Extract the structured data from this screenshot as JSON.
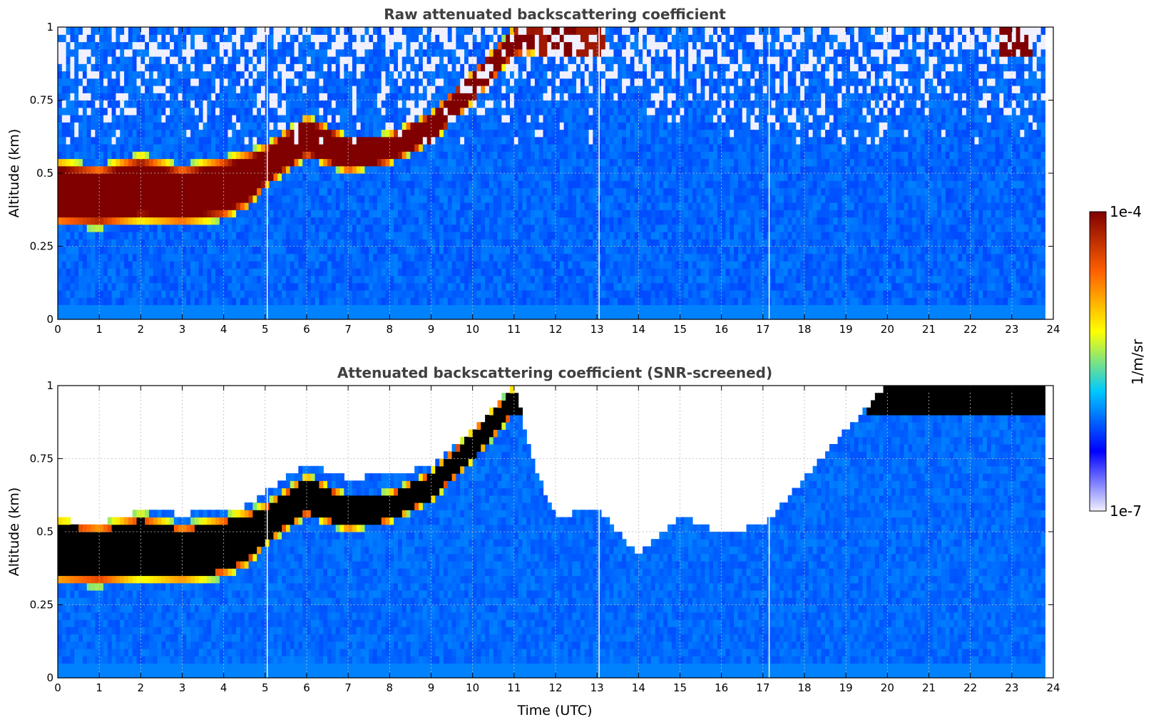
{
  "figure": {
    "colorbar": {
      "label": "1/m/sr",
      "max_label": "1e-4",
      "min_label": "1e-7",
      "scale": "log",
      "colormap": [
        "#f0f0ff",
        "#0000ff",
        "#00c8ff",
        "#ffff00",
        "#ff6000",
        "#800000"
      ]
    },
    "xlabel": "Time (UTC)"
  },
  "chart_data": [
    {
      "type": "heatmap",
      "title": "Raw attenuated backscattering coefficient",
      "xlabel": "",
      "ylabel": "Altitude (km)",
      "xlim": [
        0,
        24
      ],
      "ylim": [
        0,
        1
      ],
      "x_ticks": [
        "0",
        "1",
        "2",
        "3",
        "4",
        "5",
        "6",
        "7",
        "8",
        "9",
        "10",
        "11",
        "12",
        "13",
        "14",
        "15",
        "16",
        "17",
        "18",
        "19",
        "20",
        "21",
        "22",
        "23",
        "24"
      ],
      "y_ticks": [
        "0",
        "0.25",
        "0.5",
        "0.75",
        "1"
      ],
      "data_end_time": 23.8,
      "data_gaps_time": [
        5.05,
        13.05,
        17.15
      ],
      "layer_top_km": [
        [
          0,
          0.55
        ],
        [
          1,
          0.53
        ],
        [
          2,
          0.57
        ],
        [
          3,
          0.53
        ],
        [
          4,
          0.56
        ],
        [
          4.6,
          0.58
        ],
        [
          5,
          0.6
        ],
        [
          6,
          0.7
        ],
        [
          7,
          0.63
        ],
        [
          8,
          0.64
        ],
        [
          9,
          0.71
        ],
        [
          10,
          0.85
        ],
        [
          11,
          1.0
        ],
        [
          12,
          1.0
        ],
        [
          13,
          1.0
        ]
      ],
      "layer_bottom_km": [
        [
          0,
          0.32
        ],
        [
          1,
          0.31
        ],
        [
          2,
          0.33
        ],
        [
          3,
          0.32
        ],
        [
          4,
          0.34
        ],
        [
          4.6,
          0.38
        ],
        [
          5,
          0.45
        ],
        [
          6,
          0.55
        ],
        [
          7,
          0.5
        ],
        [
          8,
          0.53
        ],
        [
          9,
          0.6
        ],
        [
          10,
          0.74
        ],
        [
          11,
          0.9
        ],
        [
          12,
          0.92
        ],
        [
          13,
          0.95
        ]
      ],
      "upper_cloud_intervals": [
        [
          11.8,
          12.5
        ],
        [
          22.7,
          23.5
        ]
      ],
      "grid": true
    },
    {
      "type": "heatmap",
      "title": "Attenuated backscattering coefficient (SNR-screened)",
      "xlabel": "Time (UTC)",
      "ylabel": "Altitude (km)",
      "xlim": [
        0,
        24
      ],
      "ylim": [
        0,
        1
      ],
      "x_ticks": [
        "0",
        "1",
        "2",
        "3",
        "4",
        "5",
        "6",
        "7",
        "8",
        "9",
        "10",
        "11",
        "12",
        "13",
        "14",
        "15",
        "16",
        "17",
        "18",
        "19",
        "20",
        "21",
        "22",
        "23",
        "24"
      ],
      "y_ticks": [
        "0",
        "0.25",
        "0.5",
        "0.75",
        "1"
      ],
      "data_end_time": 23.8,
      "data_gaps_time": [
        5.05,
        13.05,
        17.15
      ],
      "valid_top_km": [
        [
          0,
          0.54
        ],
        [
          1,
          0.53
        ],
        [
          2,
          0.57
        ],
        [
          3,
          0.56
        ],
        [
          4,
          0.57
        ],
        [
          4.6,
          0.59
        ],
        [
          5,
          0.64
        ],
        [
          6,
          0.73
        ],
        [
          7,
          0.68
        ],
        [
          8,
          0.7
        ],
        [
          9,
          0.72
        ],
        [
          10,
          0.85
        ],
        [
          11,
          1.0
        ],
        [
          11.5,
          0.72
        ],
        [
          12,
          0.55
        ],
        [
          13,
          0.58
        ],
        [
          14,
          0.42
        ],
        [
          15,
          0.55
        ],
        [
          16,
          0.5
        ],
        [
          17,
          0.52
        ],
        [
          18,
          0.68
        ],
        [
          19,
          0.85
        ],
        [
          20,
          1.0
        ],
        [
          24,
          1.0
        ]
      ],
      "grid": true
    }
  ]
}
